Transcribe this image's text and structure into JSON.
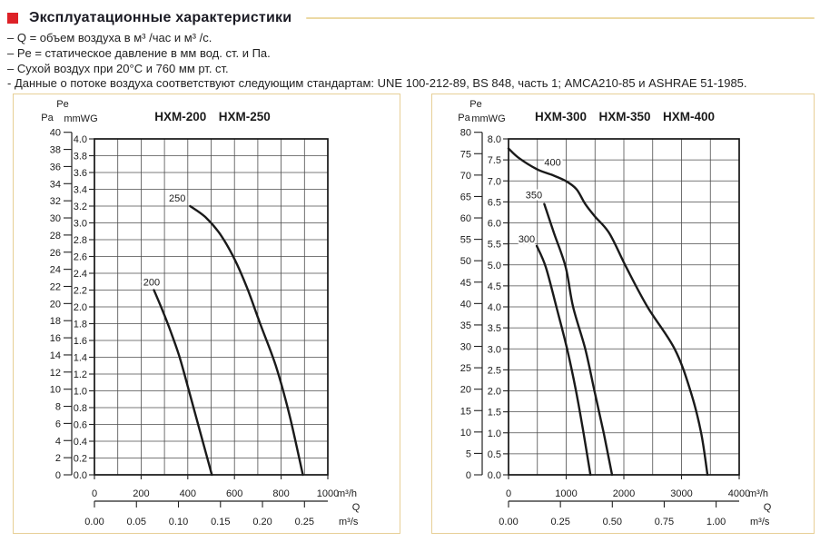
{
  "header": {
    "title": "Эксплуатационные характеристики"
  },
  "notes": [
    "– Q = объем воздуха в м³ /час и м³ /с.",
    "– Pe = статическое давление в мм вод. ст. и Па.",
    "– Сухой воздух при 20°C и 760 мм рт. ст.",
    "- Данные о потоке воздуха соответствуют следующим стандартам: UNE 100-212-89, BS 848, часть 1; AMCA210-85 и ASHRAE 51-1985."
  ],
  "colors": {
    "accent_red": "#dd2127",
    "rule_tan": "#ecd9a4",
    "panel_border": "#e7cf96",
    "ink": "#1a1a1a",
    "grid": "#4d4d4d"
  },
  "chart_data": [
    {
      "type": "line",
      "title": "HXM-200  HXM-250",
      "models": [
        "HXM-200",
        "HXM-250"
      ],
      "x_axis": {
        "min": 0,
        "max": 1000,
        "grid_step": 100,
        "tick_values": [
          0,
          200,
          400,
          600,
          800,
          1000
        ],
        "unit_h": "m³/h",
        "q_label": "Q",
        "unit_s": "m³/s",
        "s_tick_labels": [
          "0.00",
          "0.05",
          "0.10",
          "0.15",
          "0.20",
          "0.25"
        ],
        "s_to_h": 3600
      },
      "y_axis": {
        "pe_label": "Pe",
        "pa_label": "Pa",
        "mm_label": "mmWG",
        "mm_min": 0,
        "mm_max": 4.0,
        "mm_step": 0.2,
        "mm_decimals": 1,
        "pa_max": 40,
        "pa_step": 2,
        "pa_per_mmwg": 9.80665
      },
      "series": [
        {
          "name": "200",
          "label_at": [
            245,
            2.3
          ],
          "points": [
            [
              255,
              2.2
            ],
            [
              290,
              1.97
            ],
            [
              325,
              1.72
            ],
            [
              365,
              1.4
            ],
            [
              405,
              1.0
            ],
            [
              452,
              0.52
            ],
            [
              503,
              0.0
            ]
          ]
        },
        {
          "name": "250",
          "label_at": [
            355,
            3.3
          ],
          "points": [
            [
              410,
              3.2
            ],
            [
              475,
              3.07
            ],
            [
              540,
              2.86
            ],
            [
              600,
              2.57
            ],
            [
              655,
              2.22
            ],
            [
              710,
              1.8
            ],
            [
              777,
              1.3
            ],
            [
              835,
              0.72
            ],
            [
              893,
              0.0
            ]
          ]
        }
      ]
    },
    {
      "type": "line",
      "title": "HXM-300  HXM-350  HXM-400",
      "models": [
        "HXM-300",
        "HXM-350",
        "HXM-400"
      ],
      "x_axis": {
        "min": 0,
        "max": 4000,
        "grid_step": 500,
        "tick_values": [
          0,
          1000,
          2000,
          3000,
          4000
        ],
        "unit_h": "m³/h",
        "q_label": "Q",
        "unit_s": "m³/s",
        "s_tick_labels": [
          "0.00",
          "0.25",
          "0.50",
          "0.75",
          "1.00"
        ],
        "s_to_h": 3600
      },
      "y_axis": {
        "pe_label": "Pe",
        "pa_label": "Pa",
        "mm_label": "mmWG",
        "mm_min": 0,
        "mm_max": 8.0,
        "mm_step": 0.5,
        "mm_decimals": 1,
        "pa_max": 80,
        "pa_step": 5,
        "pa_per_mmwg": 9.80665
      },
      "series": [
        {
          "name": "300",
          "label_at": [
            315,
            5.62
          ],
          "points": [
            [
              490,
              5.45
            ],
            [
              645,
              4.95
            ],
            [
              830,
              4.0
            ],
            [
              1015,
              3.0
            ],
            [
              1170,
              2.0
            ],
            [
              1300,
              1.0
            ],
            [
              1420,
              0.0
            ]
          ]
        },
        {
          "name": "350",
          "label_at": [
            440,
            6.67
          ],
          "points": [
            [
              620,
              6.45
            ],
            [
              790,
              5.75
            ],
            [
              990,
              4.95
            ],
            [
              1120,
              4.0
            ],
            [
              1330,
              3.0
            ],
            [
              1490,
              2.0
            ],
            [
              1650,
              1.0
            ],
            [
              1795,
              0.0
            ]
          ]
        },
        {
          "name": "400",
          "label_at": [
            765,
            7.45
          ],
          "points": [
            [
              0,
              7.77
            ],
            [
              175,
              7.55
            ],
            [
              490,
              7.28
            ],
            [
              740,
              7.15
            ],
            [
              990,
              7.0
            ],
            [
              1180,
              6.8
            ],
            [
              1330,
              6.45
            ],
            [
              1500,
              6.15
            ],
            [
              1750,
              5.75
            ],
            [
              2040,
              4.95
            ],
            [
              2410,
              4.0
            ],
            [
              2880,
              3.0
            ],
            [
              3155,
              2.0
            ],
            [
              3340,
              1.0
            ],
            [
              3450,
              0.0
            ]
          ]
        }
      ]
    }
  ]
}
